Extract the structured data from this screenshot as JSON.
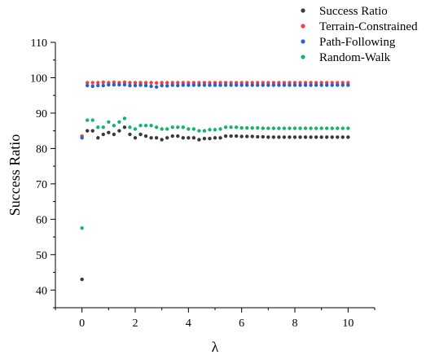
{
  "chart_data": {
    "type": "scatter",
    "xlabel": "λ",
    "ylabel": "Success Ratio",
    "xlim": [
      -1,
      11
    ],
    "ylim": [
      35,
      110
    ],
    "xticks": [
      "0",
      "2",
      "4",
      "6",
      "8",
      "10"
    ],
    "xtick_values": [
      0,
      2,
      4,
      6,
      8,
      10
    ],
    "yticks": [
      "40",
      "50",
      "60",
      "70",
      "80",
      "90",
      "100",
      "110"
    ],
    "ytick_values": [
      40,
      50,
      60,
      70,
      80,
      90,
      100,
      110
    ],
    "grid": false,
    "legend_position": "top-right",
    "x": [
      0,
      0.2,
      0.4,
      0.6,
      0.8,
      1.0,
      1.2,
      1.4,
      1.6,
      1.8,
      2.0,
      2.2,
      2.4,
      2.6,
      2.8,
      3.0,
      3.2,
      3.4,
      3.6,
      3.8,
      4.0,
      4.2,
      4.4,
      4.6,
      4.8,
      5.0,
      5.2,
      5.4,
      5.6,
      5.8,
      6.0,
      6.2,
      6.4,
      6.6,
      6.8,
      7.0,
      7.2,
      7.4,
      7.6,
      7.8,
      8.0,
      8.2,
      8.4,
      8.6,
      8.8,
      9.0,
      9.2,
      9.4,
      9.6,
      9.8,
      10.0
    ],
    "series": [
      {
        "name": "Success Ratio",
        "color": "#3a3a3a",
        "values": [
          43.0,
          85.0,
          85.0,
          83.0,
          84.0,
          84.5,
          84.0,
          85.0,
          86.0,
          84.0,
          83.0,
          84.0,
          83.5,
          83.0,
          83.0,
          82.5,
          83.0,
          83.5,
          83.5,
          83.0,
          83.0,
          83.0,
          82.5,
          82.8,
          82.8,
          83.0,
          83.0,
          83.5,
          83.5,
          83.5,
          83.4,
          83.4,
          83.4,
          83.3,
          83.3,
          83.2,
          83.2,
          83.2,
          83.2,
          83.2,
          83.2,
          83.2,
          83.2,
          83.2,
          83.2,
          83.2,
          83.2,
          83.2,
          83.2,
          83.2,
          83.2
        ]
      },
      {
        "name": "Terrain-Constrained",
        "color": "#ff3b3b",
        "values": [
          83.5,
          98.6,
          98.6,
          98.6,
          98.7,
          98.6,
          98.7,
          98.6,
          98.7,
          98.6,
          98.6,
          98.6,
          98.6,
          98.6,
          98.5,
          98.6,
          98.6,
          98.6,
          98.6,
          98.6,
          98.6,
          98.6,
          98.6,
          98.6,
          98.6,
          98.6,
          98.6,
          98.6,
          98.6,
          98.6,
          98.6,
          98.6,
          98.6,
          98.6,
          98.6,
          98.6,
          98.6,
          98.6,
          98.6,
          98.6,
          98.6,
          98.6,
          98.6,
          98.6,
          98.6,
          98.6,
          98.6,
          98.6,
          98.6,
          98.6,
          98.6
        ]
      },
      {
        "name": "Path-Following",
        "color": "#1e64d2",
        "values": [
          83.0,
          97.8,
          97.6,
          97.8,
          97.8,
          98.0,
          98.0,
          98.0,
          98.0,
          97.8,
          97.8,
          97.9,
          97.8,
          97.6,
          97.4,
          97.8,
          97.7,
          97.9,
          97.8,
          97.9,
          97.9,
          97.9,
          97.9,
          97.9,
          97.9,
          97.9,
          97.9,
          97.9,
          97.9,
          97.9,
          97.9,
          97.9,
          97.9,
          97.9,
          97.9,
          97.9,
          97.9,
          97.9,
          97.9,
          97.9,
          97.9,
          97.9,
          97.9,
          97.9,
          97.9,
          97.9,
          97.9,
          97.9,
          97.9,
          97.9,
          97.9
        ]
      },
      {
        "name": "Random-Walk",
        "color": "#14b46e",
        "values": [
          57.5,
          88.0,
          88.0,
          86.0,
          86.0,
          87.5,
          86.5,
          87.5,
          88.5,
          86.0,
          85.5,
          86.5,
          86.5,
          86.5,
          86.0,
          85.5,
          85.5,
          86.0,
          86.0,
          86.0,
          85.5,
          85.5,
          85.0,
          85.0,
          85.3,
          85.3,
          85.5,
          86.0,
          86.0,
          86.0,
          85.8,
          85.8,
          85.8,
          85.8,
          85.7,
          85.7,
          85.7,
          85.7,
          85.7,
          85.7,
          85.7,
          85.7,
          85.7,
          85.7,
          85.7,
          85.7,
          85.7,
          85.7,
          85.7,
          85.7,
          85.7
        ]
      }
    ]
  }
}
